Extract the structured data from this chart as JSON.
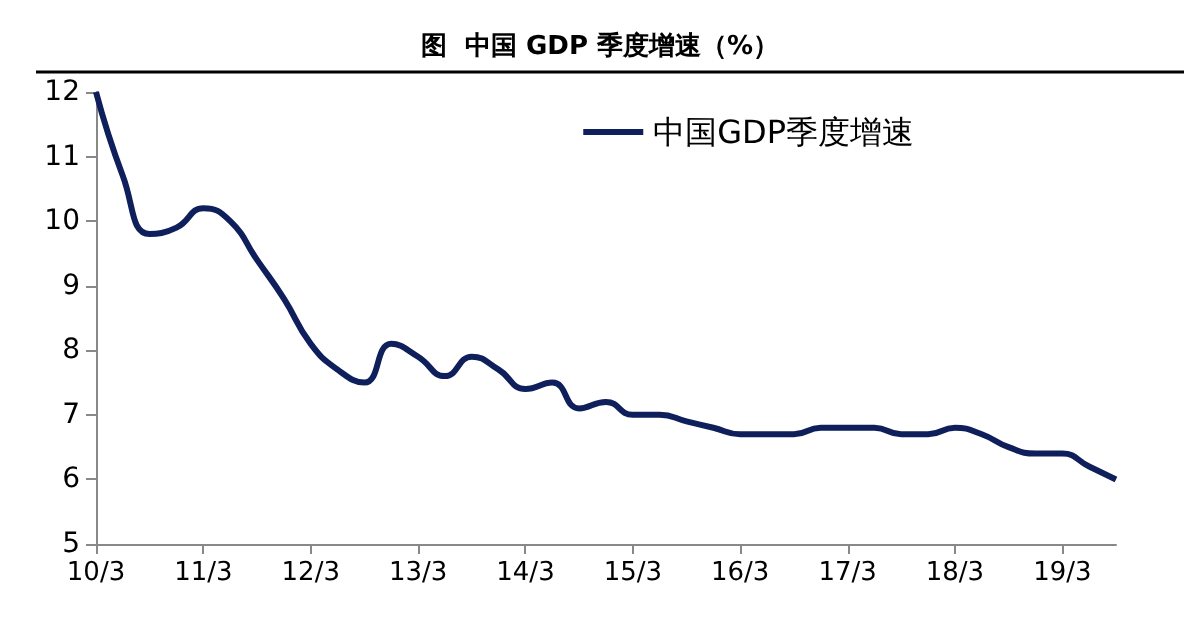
{
  "chart_data": {
    "type": "line",
    "title": "图  中国 GDP 季度增速（%）",
    "categories": [
      "10/3",
      null,
      null,
      null,
      "11/3",
      null,
      null,
      null,
      "12/3",
      null,
      null,
      null,
      "13/3",
      null,
      null,
      null,
      "14/3",
      null,
      null,
      null,
      "15/3",
      null,
      null,
      null,
      "16/3",
      null,
      null,
      null,
      "17/3",
      null,
      null,
      null,
      "18/3",
      null,
      null,
      null,
      "19/3",
      null,
      null
    ],
    "series": [
      {
        "name": "中国GDP季度增速",
        "color": "#0e1f5b",
        "values": [
          12,
          10.7,
          9.8,
          9.9,
          10.2,
          10.0,
          9.4,
          8.8,
          8.1,
          7.7,
          7.5,
          8.1,
          7.9,
          7.6,
          7.9,
          7.7,
          7.4,
          7.5,
          7.1,
          7.2,
          7.0,
          7.0,
          6.9,
          6.8,
          6.7,
          6.7,
          6.7,
          6.8,
          6.8,
          6.8,
          6.7,
          6.7,
          6.8,
          6.7,
          6.5,
          6.4,
          6.4,
          6.2,
          6.0
        ]
      }
    ],
    "ylim": [
      5,
      12
    ],
    "yticks": [
      5,
      6,
      7,
      8,
      9,
      10,
      11,
      12
    ],
    "grid": false,
    "legend": "top right",
    "marker": "none",
    "line_style": "solid"
  }
}
